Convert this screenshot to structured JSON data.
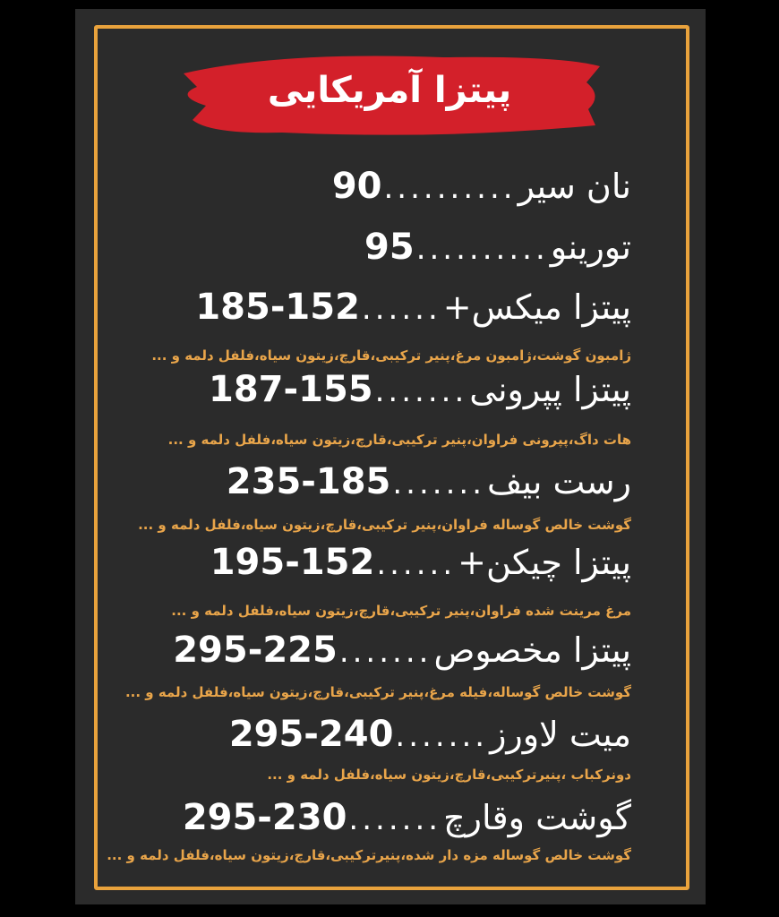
{
  "title": "پیتزا آمریکایی",
  "colors": {
    "frame": "#e9a23c",
    "brush": "#d3202a",
    "description": "#e9a54a",
    "background": "#2b2b2b"
  },
  "items": [
    {
      "name": "نان سیر",
      "dots": "..........",
      "price": "90",
      "description": ""
    },
    {
      "name": "تورینو",
      "dots": "..........",
      "price": "95",
      "description": ""
    },
    {
      "name": "پیتزا میکس+",
      "dots": "......",
      "price": "185-152",
      "description": "ژامبون گوشت،ژامبون مرغ،پنیر ترکیبی،قارچ،زیتون سیاه،فلفل دلمه و ..."
    },
    {
      "name": "پیتزا پپرونی",
      "dots": ".......",
      "price": "187-155",
      "description": "هات داگ،پپرونی فراوان،پنیر ترکیبی،قارچ،زیتون سیاه،فلفل دلمه و ..."
    },
    {
      "name": "رست بیف",
      "dots": ".......",
      "price": "235-185",
      "description": "گوشت خالص گوساله فراوان،پنیر ترکیبی،قارچ،زیتون سیاه،فلفل دلمه و ..."
    },
    {
      "name": "پیتزا چیکن+",
      "dots": "......",
      "price": "195-152",
      "description": "مرغ مرینت شده فراوان،پنیر ترکیبی،قارچ،زیتون سیاه،فلفل دلمه و ..."
    },
    {
      "name": "پیتزا مخصوص",
      "dots": ".......",
      "price": "295-225",
      "description": "گوشت خالص گوساله،فیله مرغ،پنیر ترکیبی،قارچ،زیتون سیاه،فلفل دلمه و ..."
    },
    {
      "name": "میت لاورز",
      "dots": ".......",
      "price": "295-240",
      "description": "دونرکباب ،پنیرترکیبی،قارچ،زیتون سیاه،فلفل دلمه و ..."
    },
    {
      "name": "گوشت وقارچ",
      "dots": ".......",
      "price": "295-230",
      "description": "گوشت خالص گوساله مزه دار شده،پنیرترکیبی،قارچ،زیتون سیاه،فلفل دلمه و ..."
    }
  ]
}
